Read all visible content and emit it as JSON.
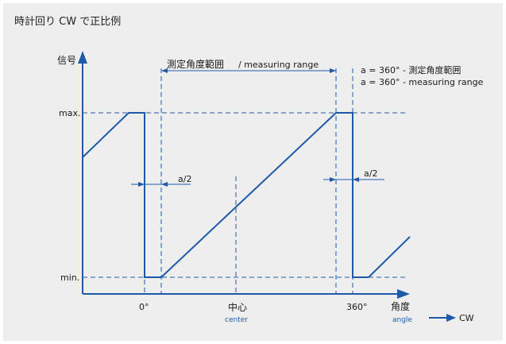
{
  "title": "時計回り CW で正比例",
  "labels": {
    "signal": "信号",
    "max": "max.",
    "min": "min.",
    "angle_jp": "角度",
    "angle_en": "angle",
    "center_jp": "中心",
    "center_en": "center",
    "zero": "0°",
    "deg360": "360°",
    "cw": "CW",
    "half_a_left": "a/2",
    "half_a_right": "a/2",
    "range_jp": "測定角度範囲",
    "range_en": "/ measuring range",
    "note1": "a = 360° - 測定角度範囲",
    "note2": "a = 360° - measuring range"
  },
  "colors": {
    "panel_bg": "#eeeeee",
    "line": "#1e5aa8"
  }
}
